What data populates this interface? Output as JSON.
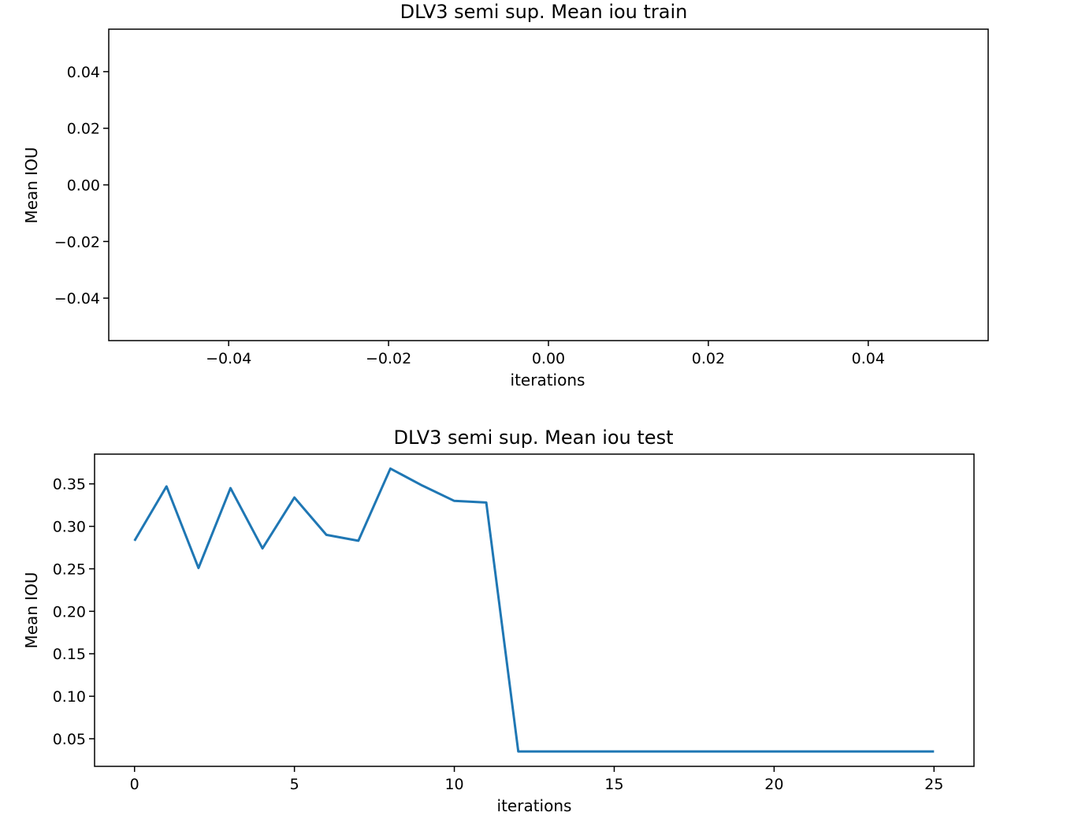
{
  "chart_data": [
    {
      "type": "line",
      "title": "DLV3 semi sup. Mean iou train",
      "xlabel": "iterations",
      "ylabel": "Mean IOU",
      "xlim": [
        -0.055,
        0.055
      ],
      "ylim": [
        -0.055,
        0.055
      ],
      "xticks": [
        -0.04,
        -0.02,
        0.0,
        0.02,
        0.04
      ],
      "xtick_labels": [
        "−0.04",
        "−0.02",
        "0.00",
        "0.02",
        "0.04"
      ],
      "yticks": [
        0.04,
        0.02,
        0.0,
        -0.02,
        -0.04
      ],
      "ytick_labels": [
        "0.04",
        "0.02",
        "0.00",
        "−0.02",
        "−0.04"
      ],
      "grid": false,
      "series": [
        {
          "x": [],
          "y": []
        }
      ]
    },
    {
      "type": "line",
      "title": "DLV3 semi sup. Mean iou test",
      "xlabel": "iterations",
      "ylabel": "Mean IOU",
      "xlim": [
        -1.25,
        26.25
      ],
      "ylim": [
        0.0175,
        0.385
      ],
      "xticks": [
        0,
        5,
        10,
        15,
        20,
        25
      ],
      "xtick_labels": [
        "0",
        "5",
        "10",
        "15",
        "20",
        "25"
      ],
      "yticks": [
        0.35,
        0.3,
        0.25,
        0.2,
        0.15,
        0.1,
        0.05
      ],
      "ytick_labels": [
        "0.35",
        "0.30",
        "0.25",
        "0.20",
        "0.15",
        "0.10",
        "0.05"
      ],
      "grid": false,
      "color": "#1f77b4",
      "series": [
        {
          "x": [
            0,
            1,
            2,
            3,
            4,
            5,
            6,
            7,
            8,
            9,
            10,
            11,
            12,
            13,
            14,
            15,
            16,
            17,
            18,
            19,
            20,
            21,
            22,
            23,
            24,
            25
          ],
          "y": [
            0.283,
            0.347,
            0.251,
            0.345,
            0.274,
            0.334,
            0.29,
            0.283,
            0.368,
            0.348,
            0.33,
            0.328,
            0.035,
            0.035,
            0.035,
            0.035,
            0.035,
            0.035,
            0.035,
            0.035,
            0.035,
            0.035,
            0.035,
            0.035,
            0.035,
            0.035
          ]
        }
      ]
    }
  ]
}
